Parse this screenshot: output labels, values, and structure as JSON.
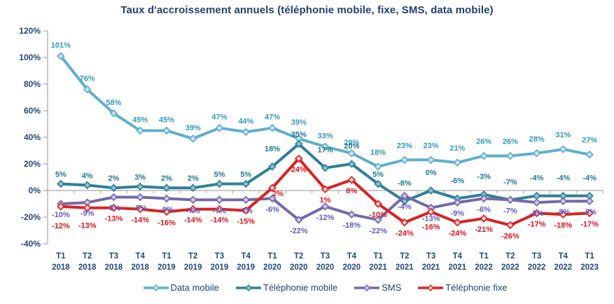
{
  "chart_data": {
    "type": "line",
    "title": "Taux d'accroissement annuels (téléphonie mobile, fixe, SMS, data mobile)",
    "categories": [
      {
        "quarter": "T1",
        "year": "2018"
      },
      {
        "quarter": "T2",
        "year": "2018"
      },
      {
        "quarter": "T3",
        "year": "2018"
      },
      {
        "quarter": "T4",
        "year": "2018"
      },
      {
        "quarter": "T1",
        "year": "2019"
      },
      {
        "quarter": "T2",
        "year": "2019"
      },
      {
        "quarter": "T3",
        "year": "2019"
      },
      {
        "quarter": "T4",
        "year": "2019"
      },
      {
        "quarter": "T1",
        "year": "2020"
      },
      {
        "quarter": "T2",
        "year": "2020"
      },
      {
        "quarter": "T3",
        "year": "2020"
      },
      {
        "quarter": "T4",
        "year": "2020"
      },
      {
        "quarter": "T1",
        "year": "2021"
      },
      {
        "quarter": "T2",
        "year": "2021"
      },
      {
        "quarter": "T3",
        "year": "2021"
      },
      {
        "quarter": "T4",
        "year": "2021"
      },
      {
        "quarter": "T1",
        "year": "2022"
      },
      {
        "quarter": "T2",
        "year": "2022"
      },
      {
        "quarter": "T3",
        "year": "2022"
      },
      {
        "quarter": "T4",
        "year": "2022"
      },
      {
        "quarter": "T1",
        "year": "2023"
      }
    ],
    "y_axis": {
      "min": -40,
      "max": 120,
      "step": 20,
      "unit": "%"
    },
    "grid": "zero-line-only",
    "legend_position": "bottom",
    "axis_text_color": "#24477F",
    "series": [
      {
        "name": "Data mobile",
        "color": "#5FAECE",
        "label_color": "#3399C1",
        "marker_fill": "#C9E5F1",
        "values": [
          101,
          76,
          58,
          45,
          45,
          39,
          47,
          44,
          47,
          39,
          33,
          28,
          18,
          23,
          23,
          21,
          26,
          26,
          28,
          31,
          27
        ]
      },
      {
        "name": "Téléphonie mobile",
        "color": "#2E7F99",
        "label_color": "#217992",
        "marker_fill": "#8FC0D0",
        "values": [
          5,
          4,
          2,
          3,
          2,
          2,
          5,
          5,
          18,
          35,
          17,
          20,
          5,
          -8,
          0,
          -6,
          -3,
          -7,
          -4,
          -4,
          -4
        ]
      },
      {
        "name": "SMS",
        "color": "#7568A9",
        "label_color": "#5F5BC4",
        "marker_fill": "#CDC8E8",
        "values": [
          -10,
          -9,
          -5,
          -5,
          -6,
          -7,
          -7,
          -7,
          -6,
          -22,
          -12,
          -18,
          -22,
          -4,
          -13,
          -9,
          -6,
          -7,
          -9,
          -8,
          -8
        ]
      },
      {
        "name": "Téléphonie fixe",
        "color": "#DC2020",
        "label_color": "#E0131F",
        "marker_fill": "#F7D3D2",
        "values": [
          -12,
          -13,
          -13,
          -14,
          -16,
          -14,
          -14,
          -15,
          2,
          24,
          1,
          8,
          -10,
          -24,
          -16,
          -24,
          -21,
          -26,
          -17,
          -18,
          -17
        ]
      }
    ]
  }
}
